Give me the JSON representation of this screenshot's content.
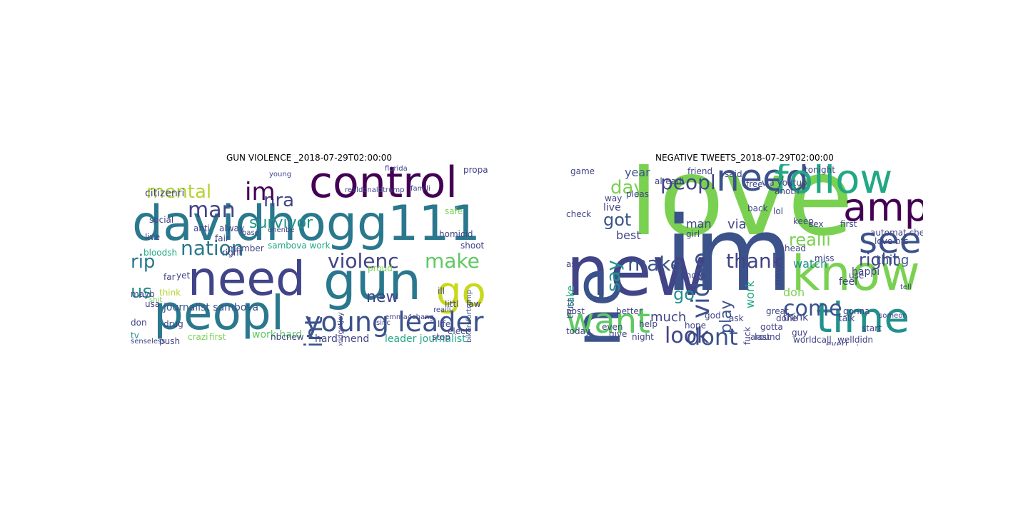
{
  "figure": {
    "left_title": "GUN VIOLENCE _2018-07-29T02:00:00",
    "right_title": "NEGATIVE TWEETS_2018-07-29T02:00:00"
  },
  "palette": [
    "#440154",
    "#414487",
    "#2a788e",
    "#22a884",
    "#7ad151",
    "#fde725",
    "#3b528b",
    "#21918c",
    "#5ec962"
  ],
  "left_cloud": {
    "words": [
      {
        "text": "davidhogg111",
        "color": "#2a788e"
      },
      {
        "text": "control",
        "color": "#440154"
      },
      {
        "text": "need",
        "color": "#414487"
      },
      {
        "text": "gun",
        "color": "#2a788e"
      },
      {
        "text": "peopl",
        "color": "#2a788e"
      },
      {
        "text": "go",
        "color": "#c9d81a"
      },
      {
        "text": "young leader",
        "color": "#3b528b"
      },
      {
        "text": "mental",
        "color": "#b5d334"
      },
      {
        "text": "nra",
        "color": "#414487"
      },
      {
        "text": "im",
        "color": "#440154"
      },
      {
        "text": "man",
        "color": "#414487"
      },
      {
        "text": "nation",
        "color": "#2a788e"
      },
      {
        "text": "survivor",
        "color": "#21918c"
      },
      {
        "text": "violenc",
        "color": "#414487"
      },
      {
        "text": "make",
        "color": "#5ec962"
      },
      {
        "text": "rip",
        "color": "#2a788e"
      },
      {
        "text": "us",
        "color": "#21918c"
      },
      {
        "text": "point",
        "color": "#3b528b"
      },
      {
        "text": "new",
        "color": "#414487"
      },
      {
        "text": "journalist sambova",
        "color": "#3b528b"
      },
      {
        "text": "hard mend",
        "color": "#414487"
      },
      {
        "text": "work hard",
        "color": "#5ec962"
      },
      {
        "text": "leader journalist",
        "color": "#22a884"
      },
      {
        "text": "citizenri",
        "color": "#414487"
      },
      {
        "text": "social",
        "color": "#414487"
      },
      {
        "text": "alway",
        "color": "#414487"
      },
      {
        "text": "base",
        "color": "#414487"
      },
      {
        "text": "fair",
        "color": "#414487"
      },
      {
        "text": "anti",
        "color": "#414487"
      },
      {
        "text": "member",
        "color": "#414487"
      },
      {
        "text": "right",
        "color": "#414487"
      },
      {
        "text": "sambova work",
        "color": "#22a884"
      },
      {
        "text": "proud",
        "color": "#7ad151"
      },
      {
        "text": "homicid",
        "color": "#414487"
      },
      {
        "text": "safe",
        "color": "#7ad151"
      },
      {
        "text": "shoot",
        "color": "#414487"
      },
      {
        "text": "bikersfortrump",
        "color": "#3b528b"
      },
      {
        "text": "ill",
        "color": "#414487"
      },
      {
        "text": "law",
        "color": "#414487"
      },
      {
        "text": "littl",
        "color": "#414487"
      },
      {
        "text": "life",
        "color": "#414487"
      },
      {
        "text": "elect",
        "color": "#414487"
      },
      {
        "text": "stop",
        "color": "#414487"
      },
      {
        "text": "usa",
        "color": "#414487"
      },
      {
        "text": "far",
        "color": "#414487"
      },
      {
        "text": "mayb",
        "color": "#414487"
      },
      {
        "text": "drug",
        "color": "#414487"
      },
      {
        "text": "first",
        "color": "#7ad151"
      },
      {
        "text": "crazi",
        "color": "#7ad151"
      },
      {
        "text": "push",
        "color": "#414487"
      },
      {
        "text": "senseless",
        "color": "#414487"
      },
      {
        "text": "nbcnew",
        "color": "#414487"
      },
      {
        "text": "tv",
        "color": "#21918c"
      },
      {
        "text": "don",
        "color": "#414487"
      },
      {
        "text": "live",
        "color": "#414487"
      },
      {
        "text": "bloodsh",
        "color": "#22a884"
      },
      {
        "text": "think",
        "color": "#b5d334"
      },
      {
        "text": "yet",
        "color": "#414487"
      },
      {
        "text": "young",
        "color": "#414487"
      },
      {
        "text": "florida",
        "color": "#414487"
      },
      {
        "text": "propaganda",
        "color": "#414487"
      },
      {
        "text": "realdonaldtrump",
        "color": "#414487"
      },
      {
        "text": "emma4chang",
        "color": "#414487"
      },
      {
        "text": "bridgetjoy",
        "color": "#414487"
      },
      {
        "text": "enenbe",
        "color": "#414487"
      },
      {
        "text": "famili",
        "color": "#414487"
      },
      {
        "text": "reaili",
        "color": "#414487"
      },
      {
        "text": "sinc",
        "color": "#414487"
      },
      {
        "text": "shit",
        "color": "#7ad151"
      }
    ]
  },
  "right_cloud": {
    "words": [
      {
        "text": "love",
        "color": "#7ad151"
      },
      {
        "text": "im",
        "color": "#3b528b"
      },
      {
        "text": "new",
        "color": "#414487"
      },
      {
        "text": "one",
        "color": "#3b528b"
      },
      {
        "text": "need",
        "color": "#3b528b"
      },
      {
        "text": "follow",
        "color": "#22a884"
      },
      {
        "text": "amp",
        "color": "#440154"
      },
      {
        "text": "know",
        "color": "#7ad151"
      },
      {
        "text": "time",
        "color": "#21918c"
      },
      {
        "text": "see",
        "color": "#3b528b"
      },
      {
        "text": "want",
        "color": "#5ec962"
      },
      {
        "text": "dont",
        "color": "#3b528b"
      },
      {
        "text": "look",
        "color": "#414487"
      },
      {
        "text": "peopl",
        "color": "#414487"
      },
      {
        "text": "day",
        "color": "#7ad151"
      },
      {
        "text": "video",
        "color": "#3b528b"
      },
      {
        "text": "make",
        "color": "#3b528b"
      },
      {
        "text": "thank",
        "color": "#414487"
      },
      {
        "text": "realli",
        "color": "#7ad151"
      },
      {
        "text": "right",
        "color": "#414487"
      },
      {
        "text": "come",
        "color": "#3b528b"
      },
      {
        "text": "got",
        "color": "#3b528b"
      },
      {
        "text": "say",
        "color": "#21918c"
      },
      {
        "text": "year",
        "color": "#3b528b"
      },
      {
        "text": "best",
        "color": "#414487"
      },
      {
        "text": "live",
        "color": "#414487"
      },
      {
        "text": "play",
        "color": "#3b528b"
      },
      {
        "text": "go",
        "color": "#21918c"
      },
      {
        "text": "much",
        "color": "#414487"
      },
      {
        "text": "watch",
        "color": "#21918c"
      },
      {
        "text": "thing",
        "color": "#3b528b"
      },
      {
        "text": "never",
        "color": "#414487"
      },
      {
        "text": "work",
        "color": "#22a884"
      },
      {
        "text": "via",
        "color": "#414487"
      },
      {
        "text": "man",
        "color": "#414487"
      },
      {
        "text": "girl",
        "color": "#414487"
      },
      {
        "text": "don",
        "color": "#7ad151"
      },
      {
        "text": "think",
        "color": "#414487"
      },
      {
        "text": "feel",
        "color": "#414487"
      },
      {
        "text": "talk",
        "color": "#414487"
      },
      {
        "text": "take",
        "color": "#22a884"
      },
      {
        "text": "trust",
        "color": "#414487"
      },
      {
        "text": "today",
        "color": "#414487"
      },
      {
        "text": "give",
        "color": "#414487"
      },
      {
        "text": "night",
        "color": "#414487"
      },
      {
        "text": "hope",
        "color": "#414487"
      },
      {
        "text": "miss",
        "color": "#414487"
      },
      {
        "text": "use",
        "color": "#414487"
      },
      {
        "text": "happi",
        "color": "#414487"
      },
      {
        "text": "tell",
        "color": "#414487"
      },
      {
        "text": "start",
        "color": "#414487"
      },
      {
        "text": "someon",
        "color": "#414487"
      },
      {
        "text": "worldcall",
        "color": "#414487"
      },
      {
        "text": "welldidn",
        "color": "#414487"
      },
      {
        "text": "around",
        "color": "#414487"
      },
      {
        "text": "friend",
        "color": "#414487"
      },
      {
        "text": "pleas",
        "color": "#414487"
      },
      {
        "text": "game",
        "color": "#414487"
      },
      {
        "text": "way",
        "color": "#414487"
      },
      {
        "text": "tonight",
        "color": "#414487"
      },
      {
        "text": "sex",
        "color": "#414487"
      },
      {
        "text": "first",
        "color": "#414487"
      },
      {
        "text": "automat check",
        "color": "#414487"
      },
      {
        "text": "love bts",
        "color": "#414487"
      },
      {
        "text": "via youtub",
        "color": "#414487"
      },
      {
        "text": "alreadi",
        "color": "#414487"
      },
      {
        "text": "free",
        "color": "#414487"
      },
      {
        "text": "said",
        "color": "#414487"
      },
      {
        "text": "back",
        "color": "#414487"
      },
      {
        "text": "even",
        "color": "#414487"
      },
      {
        "text": "check",
        "color": "#414487"
      },
      {
        "text": "better",
        "color": "#414487"
      },
      {
        "text": "ass",
        "color": "#414487"
      },
      {
        "text": "help",
        "color": "#414487"
      },
      {
        "text": "great",
        "color": "#414487"
      },
      {
        "text": "fuck",
        "color": "#414487"
      },
      {
        "text": "gotta",
        "color": "#414487"
      },
      {
        "text": "last",
        "color": "#414487"
      },
      {
        "text": "good",
        "color": "#414487"
      },
      {
        "text": "done",
        "color": "#414487"
      },
      {
        "text": "ask",
        "color": "#414487"
      },
      {
        "text": "god",
        "color": "#414487"
      },
      {
        "text": "post",
        "color": "#414487"
      },
      {
        "text": "head",
        "color": "#414487"
      },
      {
        "text": "lol",
        "color": "#414487"
      },
      {
        "text": "anoth",
        "color": "#414487"
      },
      {
        "text": "keep",
        "color": "#414487"
      },
      {
        "text": "guy",
        "color": "#414487"
      },
      {
        "text": "gonna",
        "color": "#414487"
      },
      {
        "text": "everi",
        "color": "#414487"
      },
      {
        "text": "photo",
        "color": "#414487"
      },
      {
        "text": "bo",
        "color": "#414487"
      }
    ]
  }
}
